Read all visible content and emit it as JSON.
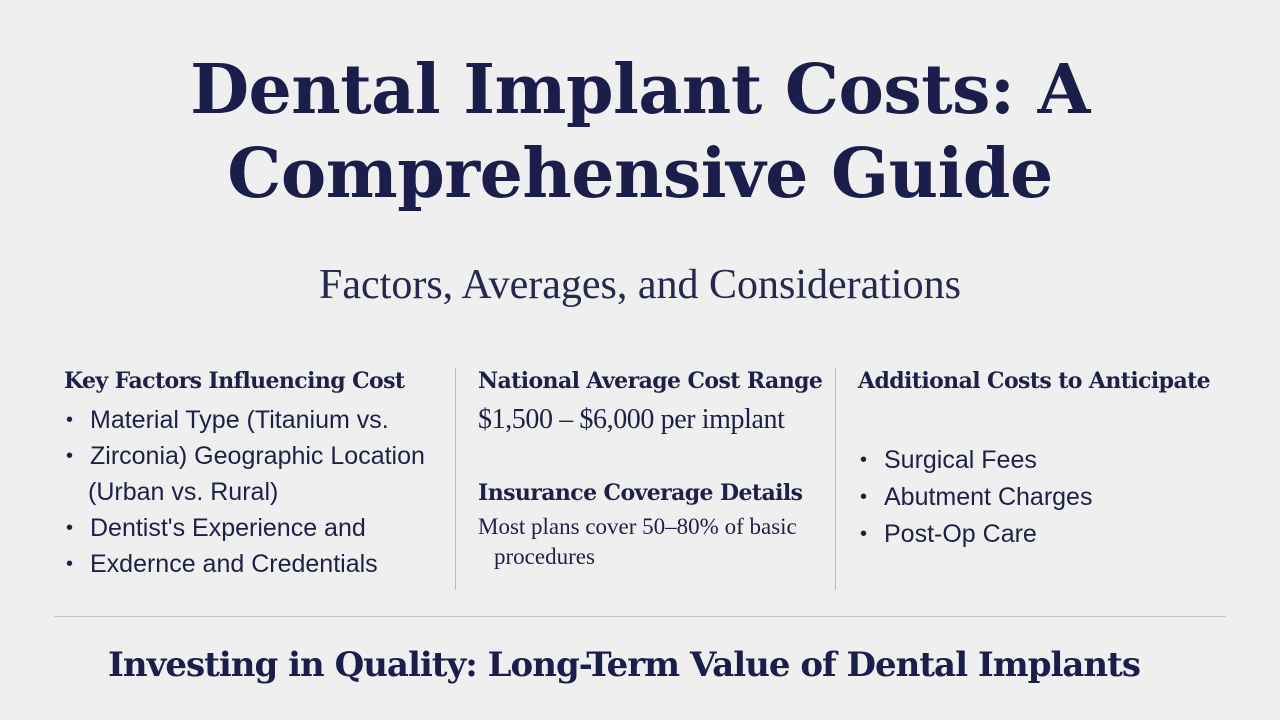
{
  "title": {
    "line1": "Dental Implant Costs: A",
    "line2": "Comprehensive Guide"
  },
  "subtitle": "Factors, Averages, and Considerations",
  "columns": {
    "key_factors": {
      "heading": "Key Factors Influencing Cost",
      "items": [
        {
          "bullet": "•",
          "text": "Material Type (Titanium vs."
        },
        {
          "bullet": "•",
          "text": "Zirconia) Geographic Location"
        },
        {
          "bullet": "",
          "text": "(Urban vs. Rural)"
        },
        {
          "bullet": "•",
          "text": "Dentist's Experience and"
        },
        {
          "bullet": "•",
          "text": "Exdernce and Credentials"
        }
      ]
    },
    "national_average": {
      "heading": "National Average Cost Range",
      "value": "$1,500 – $6,000 per implant",
      "insurance_heading": "Insurance Coverage Details",
      "insurance_line1": "Most plans cover 50–80% of basic",
      "insurance_line2": "procedures"
    },
    "additional_costs": {
      "heading": "Additional Costs to Anticipate",
      "items": [
        {
          "bullet": "•",
          "text": "Surgical Fees"
        },
        {
          "bullet": "•",
          "text": "Abutment Charges"
        },
        {
          "bullet": "•",
          "text": "Post-Op Care"
        }
      ]
    }
  },
  "footer": "Investing in Quality: Long-Term Value of Dental Implants"
}
